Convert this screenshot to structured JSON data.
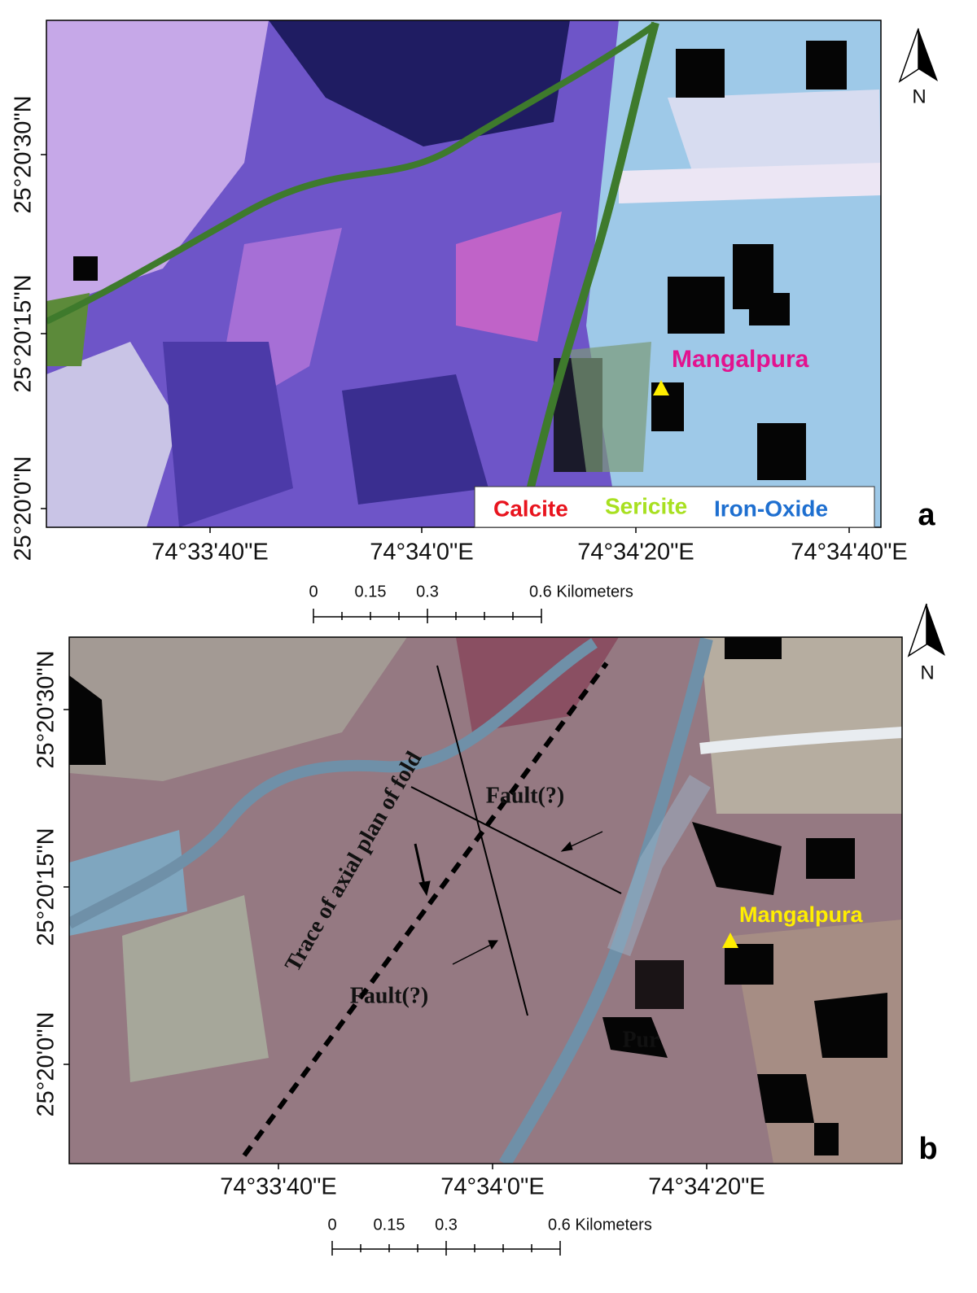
{
  "panels": [
    {
      "label": "a",
      "lat_labels": [
        "25°20'30\"N",
        "25°20'15\"N",
        "25°20'0\"N"
      ],
      "lon_labels": [
        "74°33'40\"E",
        "74°34'0\"E",
        "74°34'20\"E",
        "74°34'40\"E"
      ],
      "north": "N",
      "place": "Mangalpura",
      "legend": [
        "Calcite",
        "Sericite",
        "Iron-Oxide"
      ],
      "scale_labels": [
        "0",
        "0.15",
        "0.3",
        "0.6 Kilometers"
      ]
    },
    {
      "label": "b",
      "lat_labels": [
        "25°20'30\"N",
        "25°20'15\"N",
        "25°20'0\"N"
      ],
      "lon_labels": [
        "74°33'40\"E",
        "74°34'0\"E",
        "74°34'20\"E"
      ],
      "north": "N",
      "place": "Mangalpura",
      "annotations": [
        "Trace of axial plan of fold",
        "Fault(?)",
        "Fault(?)",
        "Pur"
      ],
      "scale_labels": [
        "0",
        "0.15",
        "0.3",
        "0.6 Kilometers"
      ]
    }
  ]
}
